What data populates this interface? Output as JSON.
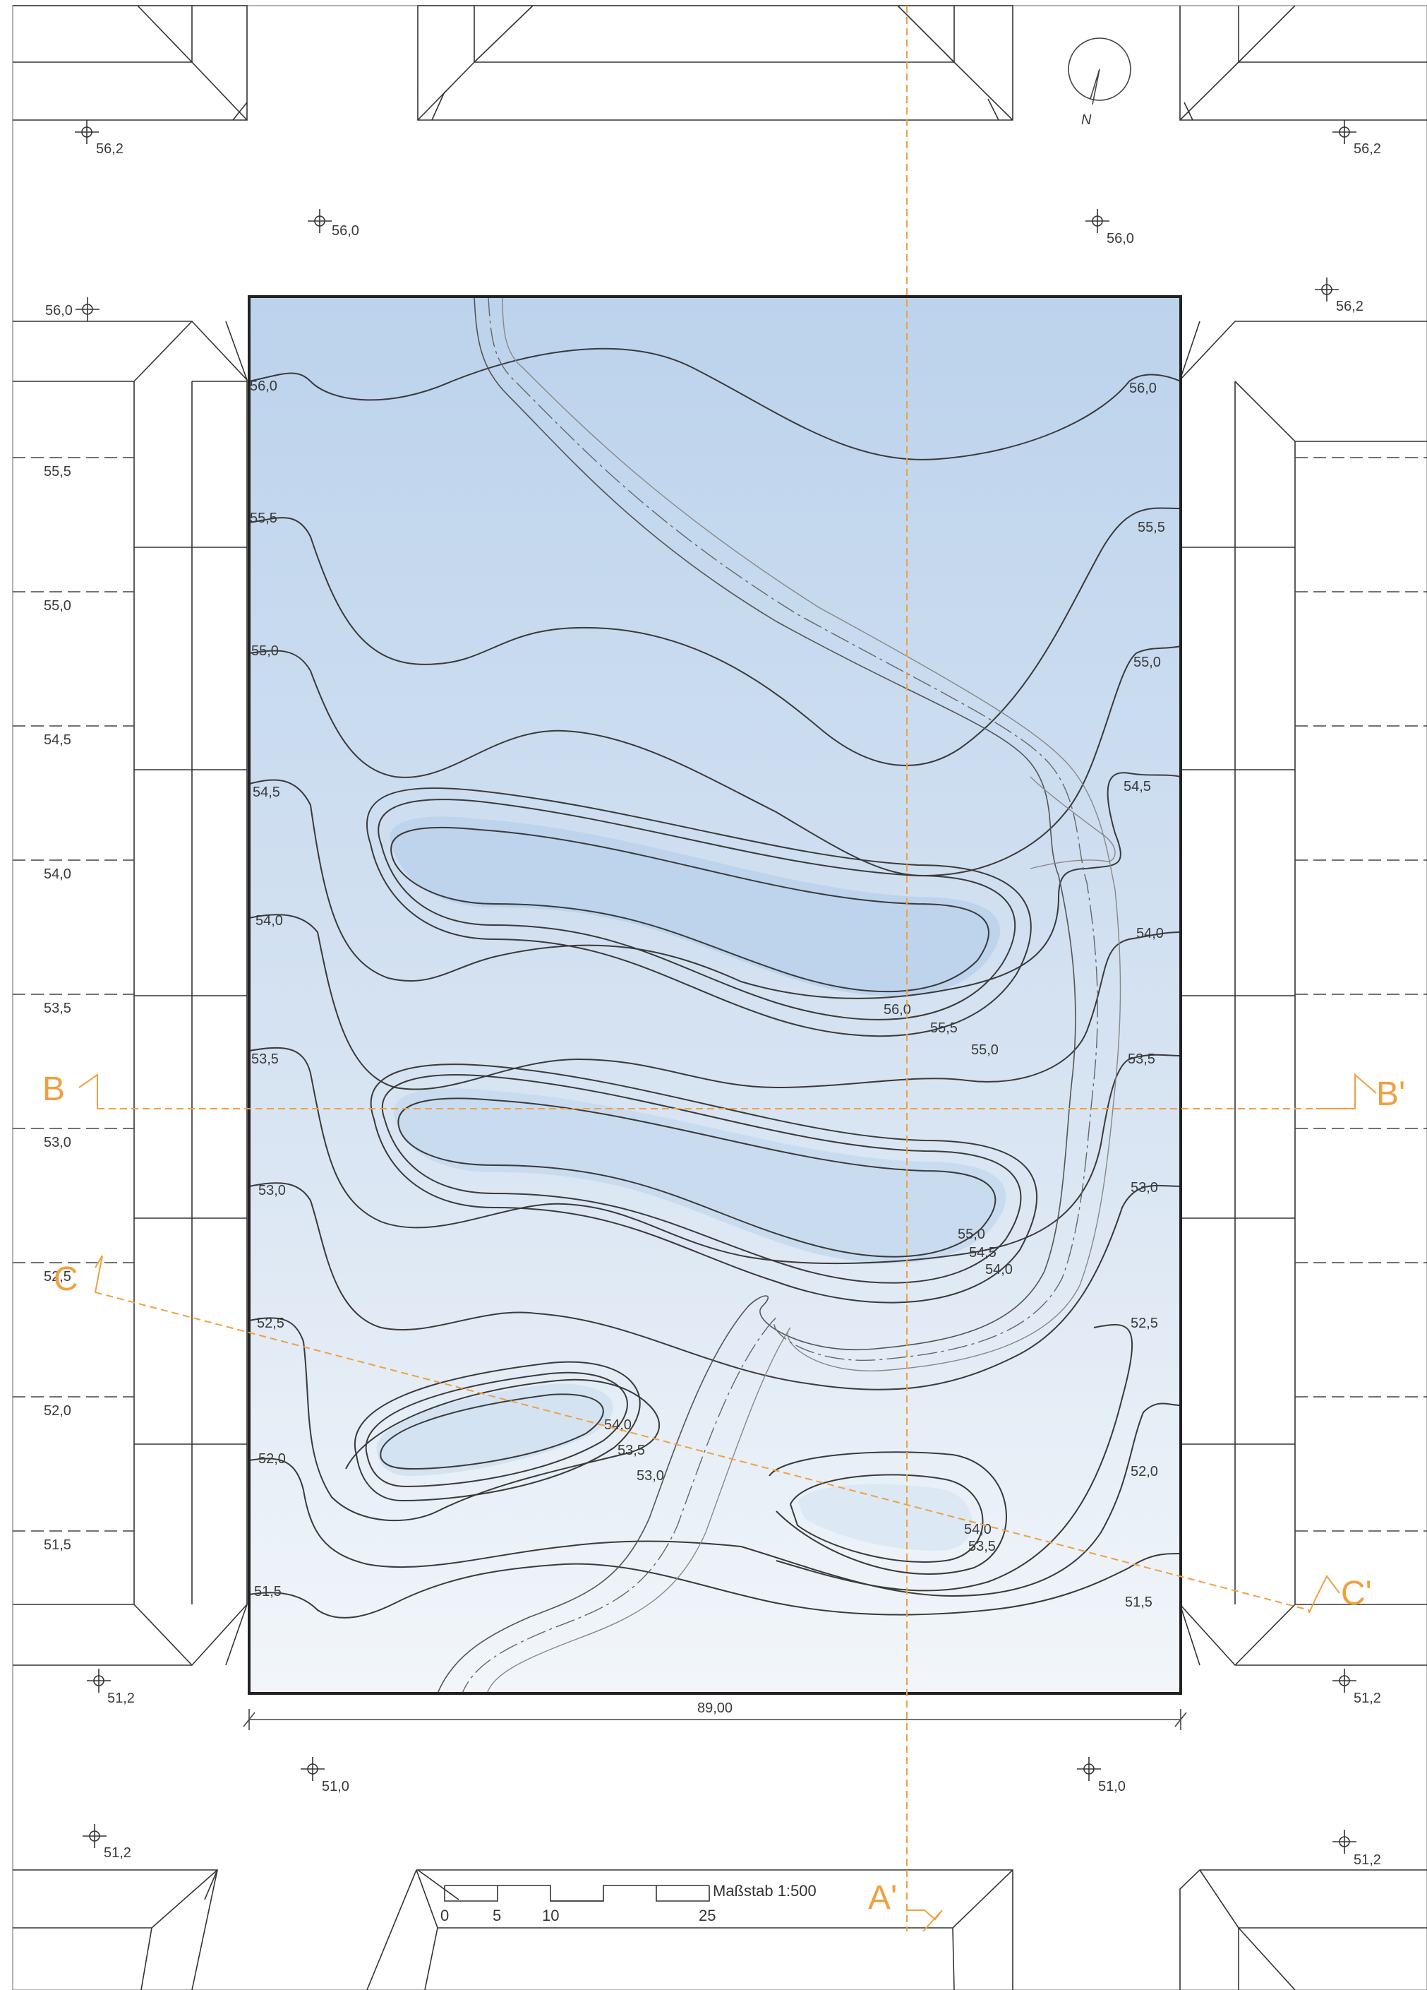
{
  "north_label": "N",
  "dimension_label": "89,00",
  "scale": {
    "label": "Maßstab 1:500",
    "ticks": [
      "0",
      "5",
      "10",
      "25"
    ]
  },
  "sections": {
    "a_end": "A'",
    "b_start": "B",
    "b_end": "B'",
    "c_start": "C",
    "c_end": "C'"
  },
  "spot_heights": {
    "tl": "56,2",
    "tc": "56,0",
    "tr_c": "56,0",
    "tr": "56,2",
    "tr2": "56,2",
    "left": "56,0",
    "bl": "51,2",
    "br": "51,2",
    "bc_l": "51,0",
    "bc_r": "51,0",
    "bl2": "51,2",
    "br2": "51,2"
  },
  "left_levels": [
    "55,5",
    "55,0",
    "54,5",
    "54,0",
    "53,5",
    "53,0",
    "52,5",
    "52,0",
    "51,5"
  ],
  "contour_labels": {
    "l_560": "56,0",
    "l_555": "55,5",
    "l_550": "55,0",
    "l_545": "54,5",
    "l_540": "54,0",
    "l_535": "53,5",
    "l_530": "53,0",
    "l_525": "52,5",
    "l_520": "52,0",
    "l_515": "51,5",
    "r_560": "56,0",
    "r_555": "55,5",
    "r_550": "55,0",
    "r_545": "54,5",
    "r_540": "54,0",
    "r_535": "53,5",
    "r_530": "53,0",
    "r_525": "52,5",
    "r_520": "52,0",
    "r_515": "51,5",
    "h1_a": "56,0",
    "h1_b": "55,5",
    "h1_c": "55,0",
    "h2_a": "55,0",
    "h2_b": "54,5",
    "h2_c": "54,0",
    "h3_a": "54,0",
    "h3_b": "53,5",
    "h3_c": "53,0",
    "h4_a": "54,0",
    "h4_b": "53,5"
  }
}
